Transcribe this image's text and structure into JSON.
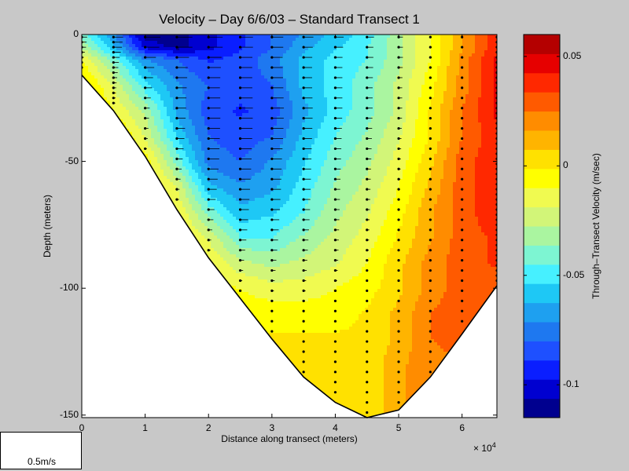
{
  "chart_data": {
    "type": "heatmap",
    "subtype": "filled-contour-with-quiver",
    "title": "Velocity – Day 6/6/03 – Standard Transect 1",
    "xlabel": "Distance along transect (meters)",
    "ylabel": "Depth (meters)",
    "x_exponent_base": "× 10",
    "x_exponent_power": "4",
    "xlim": [
      0,
      6.55
    ],
    "ylim": [
      -151,
      0
    ],
    "xticks": [
      0,
      1,
      2,
      3,
      4,
      5,
      6
    ],
    "yticks": [
      0,
      -50,
      -100,
      -150
    ],
    "colorbar": {
      "label": "Through–Transect Velocity (m/sec)",
      "range": [
        -0.115,
        0.06
      ],
      "ticks": [
        0.05,
        0,
        -0.05,
        -0.1
      ],
      "colors": [
        "#00008f",
        "#0000d0",
        "#0a1eff",
        "#1e50ff",
        "#1e78f0",
        "#1ea0f0",
        "#1ec8f5",
        "#46f0ff",
        "#7df5d2",
        "#aaf5a0",
        "#d2f578",
        "#f0fa50",
        "#ffff00",
        "#ffe100",
        "#ffb400",
        "#ff8c00",
        "#ff5a00",
        "#ff2800",
        "#e60000",
        "#b40000"
      ]
    },
    "bottom_profile": {
      "x": [
        0,
        0.5,
        1,
        1.5,
        2,
        2.5,
        3,
        3.5,
        4,
        4.5,
        5,
        5.5,
        6,
        6.55
      ],
      "depth": [
        -16,
        -30,
        -48,
        -69,
        -88,
        -104,
        -120,
        -135,
        -145,
        -151,
        -148,
        -135,
        -118,
        -99
      ]
    },
    "velocity_grid": {
      "x": [
        0,
        0.5,
        1,
        1.5,
        2,
        2.5,
        3,
        3.5,
        4,
        4.5,
        5,
        5.5,
        6,
        6.55
      ],
      "depth": [
        0,
        -5,
        -10,
        -20,
        -30,
        -40,
        -50,
        -60,
        -70,
        -80,
        -90,
        -100,
        -110,
        -120,
        -130,
        -140,
        -150
      ],
      "values": [
        [
          -0.04,
          -0.07,
          -0.11,
          -0.11,
          -0.1,
          -0.09,
          -0.08,
          -0.07,
          -0.06,
          -0.05,
          -0.03,
          -0.01,
          0.015,
          0.04
        ],
        [
          -0.03,
          -0.06,
          -0.1,
          -0.11,
          -0.1,
          -0.09,
          -0.08,
          -0.065,
          -0.055,
          -0.045,
          -0.03,
          -0.01,
          0.015,
          0.04
        ],
        [
          -0.01,
          -0.04,
          -0.07,
          -0.08,
          -0.09,
          -0.085,
          -0.075,
          -0.06,
          -0.05,
          -0.045,
          -0.03,
          -0.01,
          0.02,
          0.045
        ],
        [
          0.005,
          -0.02,
          -0.05,
          -0.07,
          -0.08,
          -0.085,
          -0.08,
          -0.06,
          -0.05,
          -0.04,
          -0.025,
          -0.005,
          0.02,
          0.045
        ],
        [
          0.01,
          -0.01,
          -0.03,
          -0.065,
          -0.085,
          -0.09,
          -0.085,
          -0.065,
          -0.05,
          -0.04,
          -0.025,
          0.0,
          0.025,
          0.045
        ],
        [
          0.015,
          0.005,
          -0.02,
          -0.055,
          -0.08,
          -0.085,
          -0.08,
          -0.06,
          -0.045,
          -0.035,
          -0.02,
          0.0,
          0.025,
          0.04
        ],
        [
          0.02,
          0.01,
          -0.005,
          -0.04,
          -0.075,
          -0.08,
          -0.07,
          -0.055,
          -0.04,
          -0.03,
          -0.015,
          0.005,
          0.03,
          0.04
        ],
        [
          0.02,
          0.015,
          0.0,
          -0.02,
          -0.06,
          -0.07,
          -0.065,
          -0.05,
          -0.035,
          -0.025,
          -0.01,
          0.01,
          0.03,
          0.04
        ],
        [
          0.02,
          0.015,
          0.0,
          -0.01,
          -0.04,
          -0.06,
          -0.055,
          -0.045,
          -0.03,
          -0.02,
          -0.005,
          0.015,
          0.03,
          0.04
        ],
        [
          0.02,
          0.015,
          0.005,
          -0.005,
          -0.02,
          -0.045,
          -0.045,
          -0.035,
          -0.025,
          -0.015,
          0.0,
          0.015,
          0.03,
          0.035
        ],
        [
          0.02,
          0.015,
          0.005,
          0.0,
          -0.01,
          -0.025,
          -0.03,
          -0.025,
          -0.02,
          -0.01,
          0.005,
          0.02,
          0.03,
          0.035
        ],
        [
          0.02,
          0.015,
          0.005,
          0.0,
          -0.005,
          -0.01,
          -0.015,
          -0.015,
          -0.01,
          -0.005,
          0.005,
          0.02,
          0.03,
          0.03
        ],
        [
          0.02,
          0.015,
          0.005,
          0.0,
          0.0,
          -0.005,
          -0.005,
          -0.005,
          -0.005,
          0.0,
          0.01,
          0.025,
          0.03,
          0.03
        ],
        [
          0.02,
          0.015,
          0.005,
          0.0,
          0.0,
          0.0,
          0.0,
          0.0,
          0.0,
          0.0,
          0.01,
          0.025,
          0.03,
          0.03
        ],
        [
          0.02,
          0.015,
          0.005,
          0.0,
          0.0,
          0.0,
          0.0,
          0.0,
          0.0,
          0.0,
          0.015,
          0.02,
          0.025,
          0.025
        ],
        [
          0.02,
          0.015,
          0.005,
          0.0,
          0.0,
          0.0,
          0.0,
          0.0,
          0.0,
          0.0,
          0.015,
          0.02,
          0.025,
          0.025
        ],
        [
          0.02,
          0.015,
          0.005,
          0.0,
          0.0,
          0.0,
          0.0,
          0.0,
          0.0,
          0.0,
          0.015,
          0.02,
          0.025,
          0.025
        ]
      ]
    },
    "quiver": {
      "note": "arrows point in -x direction; length proportional to through-transect speed",
      "reference_label": "0.5m/s",
      "reference_speed": 0.5,
      "station_x": [
        0,
        0.5,
        1,
        1.5,
        2,
        2.5,
        3,
        3.5,
        4,
        4.5,
        5,
        5.5,
        6,
        6.55
      ]
    },
    "grid": false
  }
}
